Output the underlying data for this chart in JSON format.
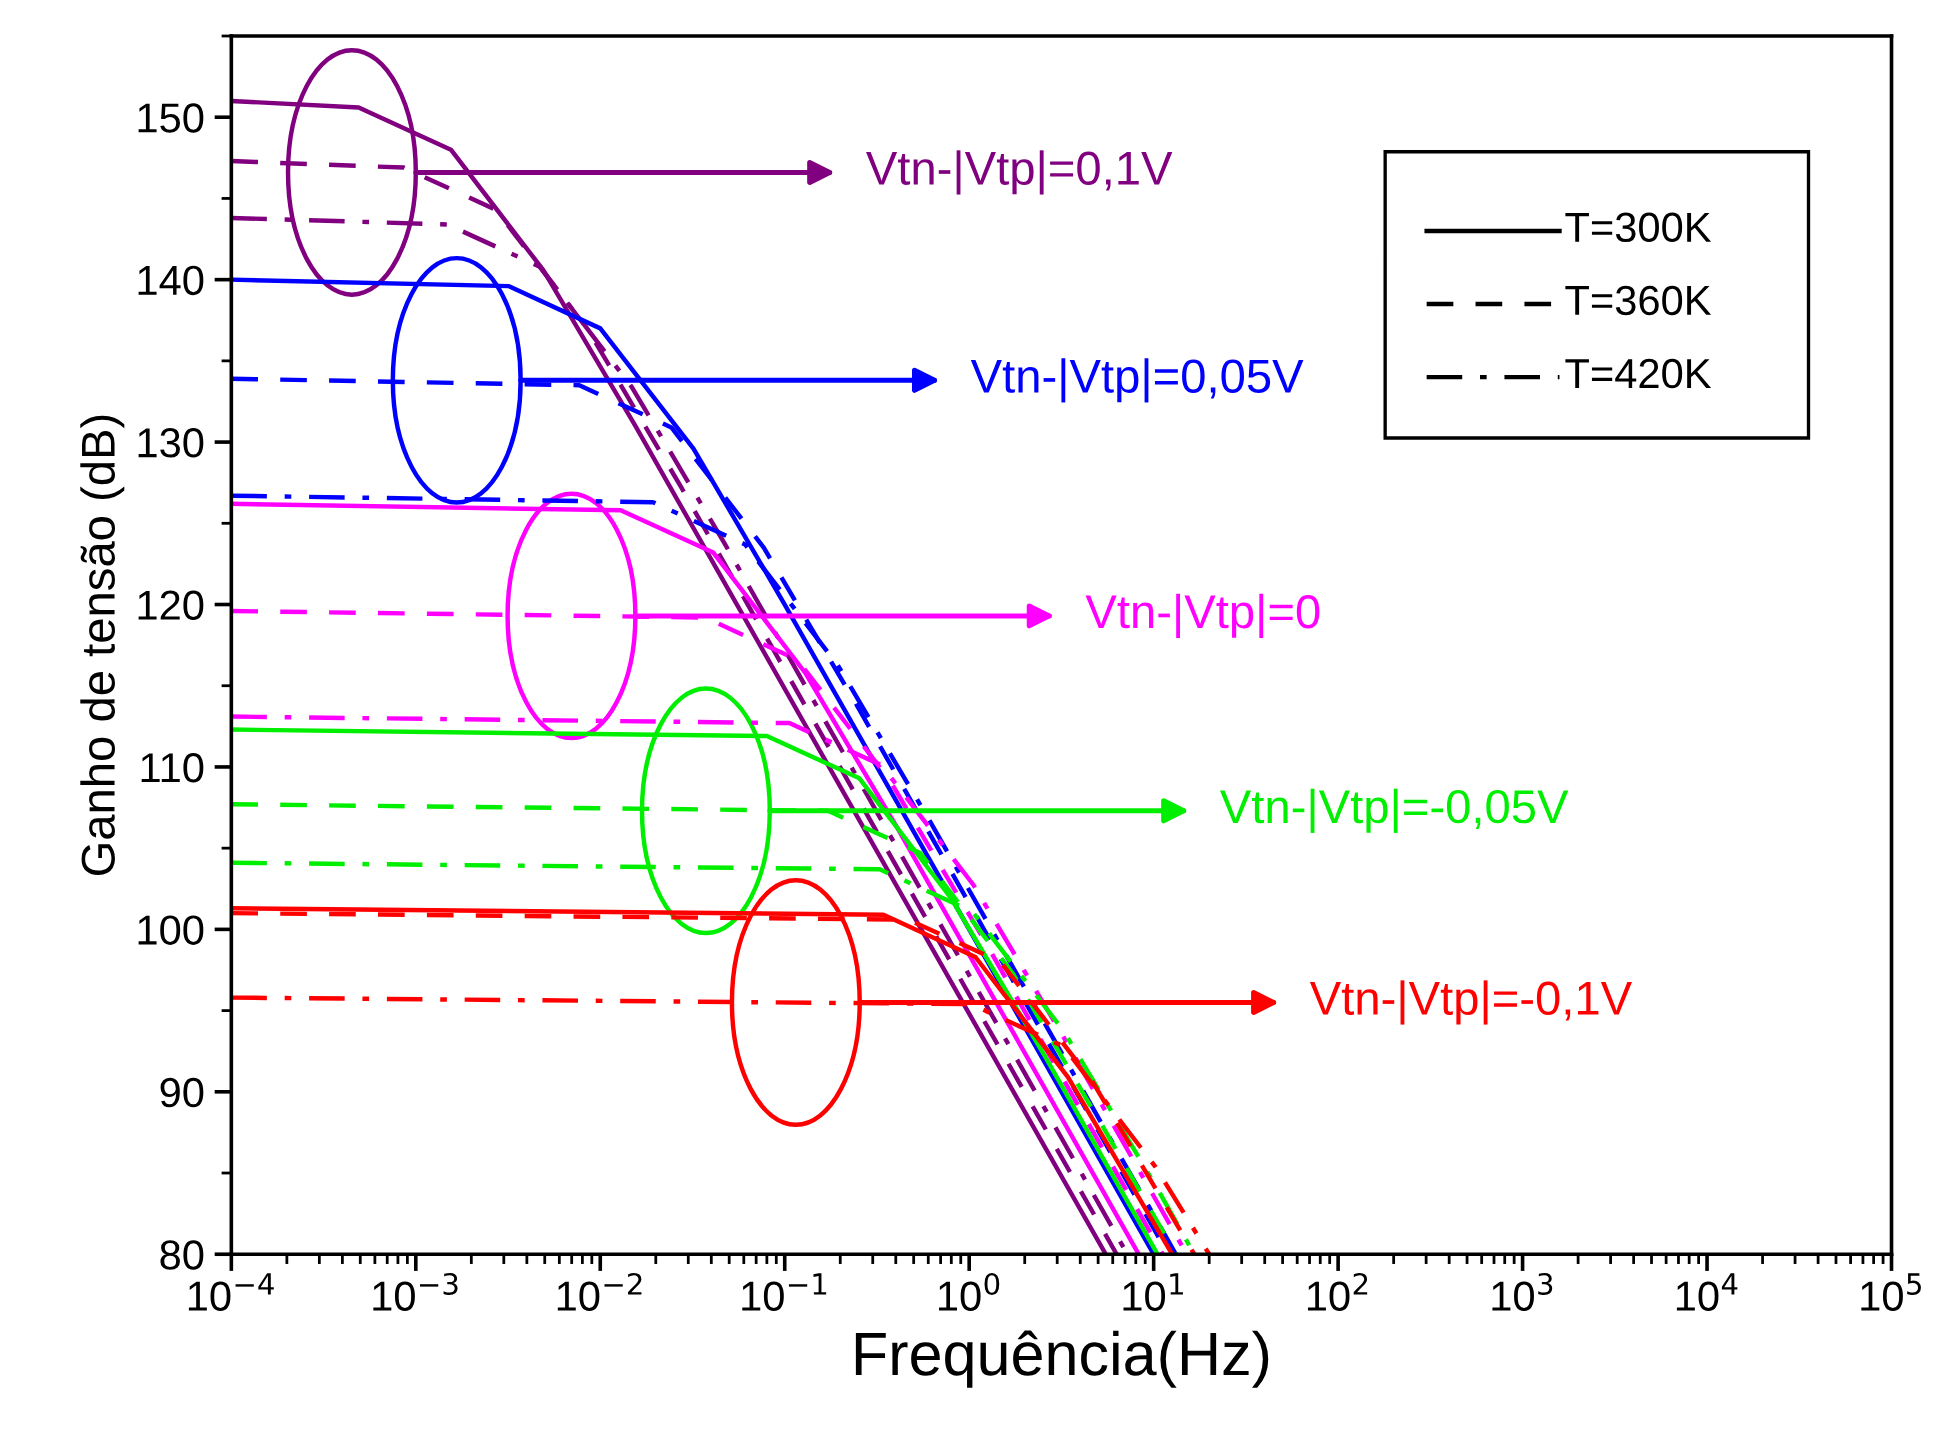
{
  "chart_data": {
    "type": "line",
    "xlabel": "Frequência(Hz)",
    "ylabel": "Ganho de tensão (dB)",
    "log": "x",
    "grid": false,
    "marker": "none",
    "xlim": [
      0.0001,
      100000
    ],
    "xticks": [
      {
        "value": 0.0001,
        "label": "10$^{−4}$"
      },
      {
        "value": 0.001,
        "label": "10$^{−3}$"
      },
      {
        "value": 0.01,
        "label": "10$^{−2}$"
      },
      {
        "value": 0.1,
        "label": "10$^{−1}$"
      },
      {
        "value": 1,
        "label": "10$^{0}$"
      },
      {
        "value": 10,
        "label": "10$^{1}$"
      },
      {
        "value": 100,
        "label": "10$^{2}$"
      },
      {
        "value": 1000,
        "label": "10$^{3}$"
      },
      {
        "value": 10000,
        "label": "10$^{4}$"
      },
      {
        "value": 100000,
        "label": "10$^{5}$"
      }
    ],
    "ylim": [
      80,
      155
    ],
    "yticks": [
      80,
      90,
      100,
      110,
      120,
      130,
      140,
      150
    ],
    "series": [
      {
        "color": "#800080",
        "line_style": "solid",
        "x": [
          0.0001,
          0.00049,
          0.00155,
          0.0049,
          0.0155,
          5.5
        ],
        "values": [
          151,
          150.6,
          148,
          140.6,
          131,
          80
        ]
      },
      {
        "color": "#800080",
        "line_style": "dashed",
        "x": [
          0.0001,
          0.00086,
          0.00272,
          0.0086,
          0.0272,
          6.3
        ],
        "values": [
          147.3,
          146.9,
          144.3,
          136.9,
          127.3,
          80
        ]
      },
      {
        "color": "#800080",
        "line_style": "dashdot",
        "x": [
          0.0001,
          0.00148,
          0.0047,
          0.0148,
          0.047,
          7.2
        ],
        "values": [
          143.8,
          143.4,
          140.8,
          133.4,
          123.8,
          80
        ]
      },
      {
        "color": "#0000ff",
        "line_style": "solid",
        "x": [
          0.0001,
          0.0032,
          0.01,
          0.032,
          0.1,
          10
        ],
        "values": [
          140,
          139.6,
          137,
          129.6,
          120,
          80
        ]
      },
      {
        "color": "#0000ff",
        "line_style": "dashed",
        "x": [
          0.0001,
          0.0077,
          0.0243,
          0.077,
          0.243,
          12
        ],
        "values": [
          133.9,
          133.5,
          130.9,
          123.5,
          113.9,
          80
        ]
      },
      {
        "color": "#0000ff",
        "line_style": "dashdot",
        "x": [
          0.0001,
          0.0193,
          0.061,
          0.193,
          0.61,
          13.2
        ],
        "values": [
          126.7,
          126.3,
          123.7,
          116.3,
          106.7,
          80
        ]
      },
      {
        "color": "#ff00ff",
        "line_style": "solid",
        "x": [
          0.0001,
          0.0129,
          0.041,
          0.129,
          0.41,
          8.3
        ],
        "values": [
          126.2,
          125.8,
          123.2,
          115.8,
          106.2,
          80
        ]
      },
      {
        "color": "#ff00ff",
        "line_style": "dashed",
        "x": [
          0.0001,
          0.037,
          0.117,
          0.37,
          1.17,
          11.2
        ],
        "values": [
          119.6,
          119.2,
          116.6,
          109.2,
          99.6,
          80
        ]
      },
      {
        "color": "#ff00ff",
        "line_style": "dashdot",
        "x": [
          0.0001,
          0.106,
          0.335,
          1.06,
          3.35,
          15.1
        ],
        "values": [
          113.1,
          112.7,
          110.1,
          102.7,
          93.1,
          80
        ]
      },
      {
        "color": "#00ee00",
        "line_style": "solid",
        "x": [
          0.0001,
          0.08,
          0.254,
          0.8,
          2.54,
          10.5
        ],
        "values": [
          112.3,
          111.9,
          109.3,
          101.9,
          92.3,
          80
        ]
      },
      {
        "color": "#00ee00",
        "line_style": "dashed",
        "x": [
          0.0001,
          0.172,
          0.543,
          1.72,
          5.4,
          13.2
        ],
        "values": [
          107.7,
          107.3,
          104.7,
          97.3,
          87.7,
          80
        ]
      },
      {
        "color": "#00ee00",
        "line_style": "dashdot",
        "x": [
          0.0001,
          0.327,
          1.04,
          3.27,
          10.4,
          16.6
        ],
        "values": [
          104.1,
          103.7,
          101.1,
          93.7,
          84.1,
          80
        ]
      },
      {
        "color": "#ff0000",
        "line_style": "solid",
        "x": [
          0.0001,
          0.343,
          1.08,
          3.43,
          12.6
        ],
        "values": [
          101.3,
          100.9,
          98.3,
          90.9,
          80
        ]
      },
      {
        "color": "#ff0000",
        "line_style": "dashed",
        "x": [
          0.0001,
          0.468,
          1.48,
          4.68,
          16.6
        ],
        "values": [
          101,
          100.6,
          98,
          90.6,
          80
        ]
      },
      {
        "color": "#ff0000",
        "line_style": "dashdot",
        "x": [
          0.0001,
          1.02,
          3.24,
          10.2,
          20
        ],
        "values": [
          95.8,
          95.4,
          92.8,
          85.4,
          80
        ]
      }
    ],
    "annotations": [
      {
        "text": "Vtn-|Vtp|=0,1V",
        "x": 0.001,
        "y": 146.6
      },
      {
        "text": "Vtn-|Vtp|=0,05V",
        "x": 0.0037,
        "y": 133.8
      },
      {
        "text": "Vtn-|Vtp|=0",
        "x": 0.0155,
        "y": 119.3
      },
      {
        "text": "Vtn-|Vtp|=-0,05V",
        "x": 0.083,
        "y": 107.3
      },
      {
        "text": "Vtn-|Vtp|=-0,1V",
        "x": 0.255,
        "y": 95.5
      },
      "T=300K",
      "T=360K",
      "T=420K"
    ]
  }
}
